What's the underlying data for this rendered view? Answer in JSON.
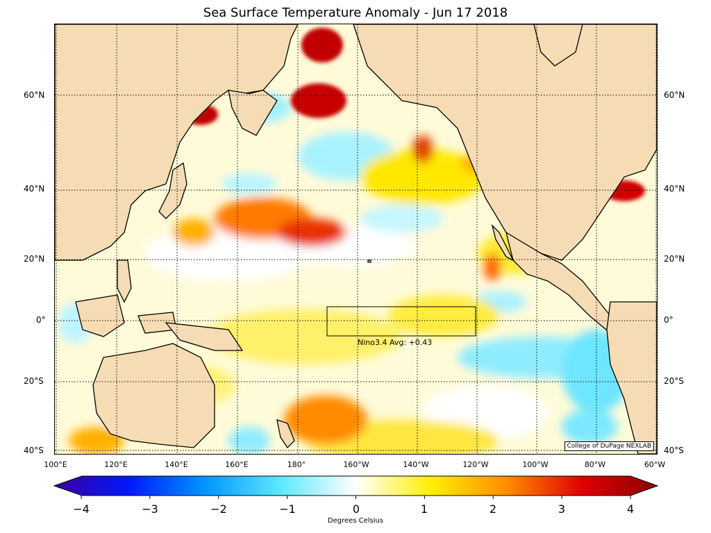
{
  "title": "Sea Surface Temperature Anomaly - Jun 17 2018",
  "map": {
    "type": "sst-anomaly-map",
    "projection": "equirectangular",
    "lon_range": [
      100,
      300
    ],
    "lat_range": [
      -42,
      76
    ],
    "land_color": "#f5dcb4",
    "lat_labels": [
      "60°N",
      "40°N",
      "20°N",
      "0°",
      "20°S",
      "40°S"
    ],
    "lon_labels": [
      "100°E",
      "120°E",
      "140°E",
      "160°E",
      "180°",
      "160°W",
      "140°W",
      "120°W",
      "100°W",
      "80°W",
      "60°W"
    ],
    "nino34_box": {
      "lon": [
        190,
        240
      ],
      "lat": [
        -5,
        5
      ]
    },
    "nino34_label": "Nino3.4 Avg: +0.43",
    "credit": "College of DuPage NEXLAB"
  },
  "colorbar": {
    "min": -4,
    "max": 4,
    "ticks": [
      "−4",
      "−3",
      "−2",
      "−1",
      "0",
      "1",
      "2",
      "3",
      "4"
    ],
    "label": "Degrees Celsius",
    "colors": [
      "#3c00a0",
      "#0018ff",
      "#0096ff",
      "#5ee8ff",
      "#ffffff",
      "#fff000",
      "#ff8c00",
      "#e10000",
      "#8b0000"
    ]
  }
}
